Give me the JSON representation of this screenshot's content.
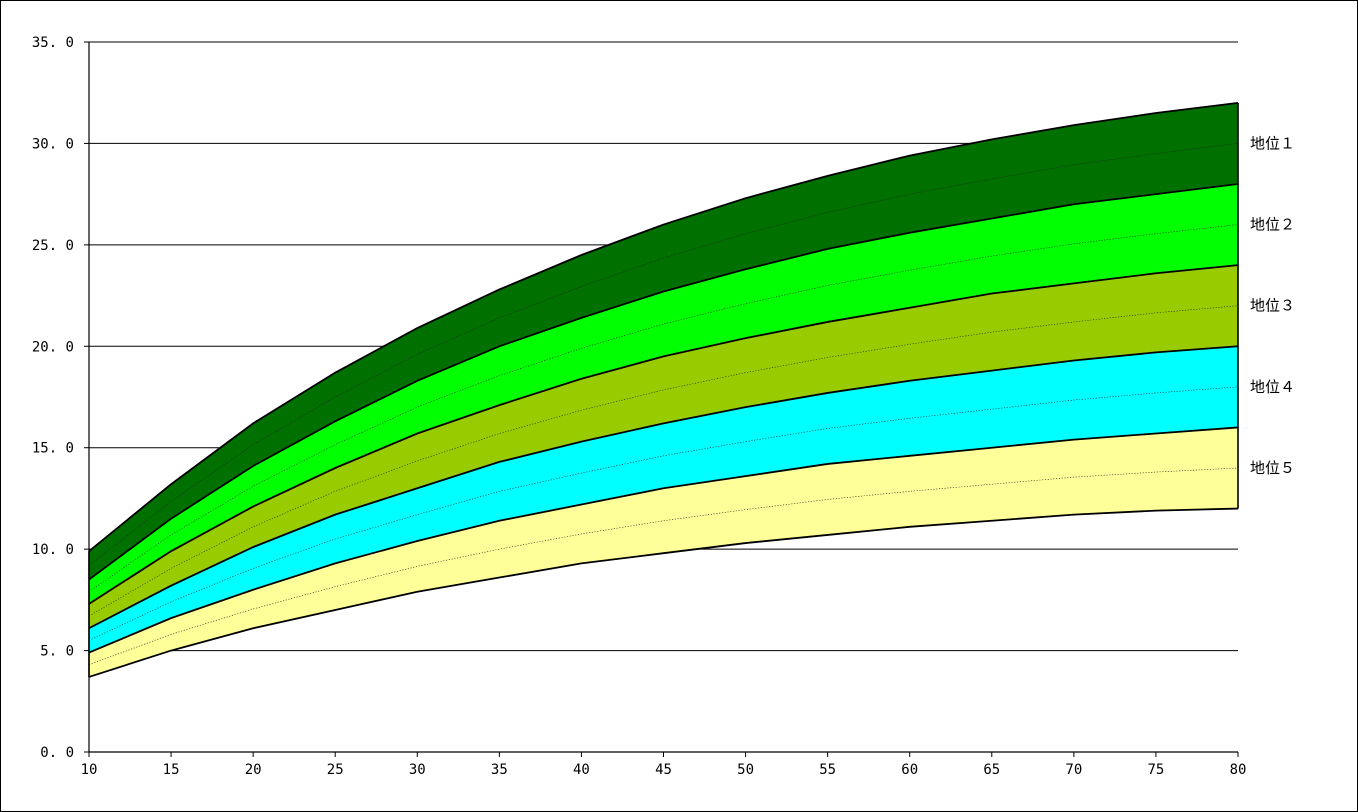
{
  "chart_data": {
    "type": "area",
    "title": "",
    "xlabel": "",
    "ylabel": "",
    "x": [
      10,
      15,
      20,
      25,
      30,
      35,
      40,
      45,
      50,
      55,
      60,
      65,
      70,
      75,
      80
    ],
    "xlim": [
      10,
      80
    ],
    "ylim": [
      0,
      35
    ],
    "x_ticks": [
      "10",
      "15",
      "20",
      "25",
      "30",
      "35",
      "40",
      "45",
      "50",
      "55",
      "60",
      "65",
      "70",
      "75",
      "80"
    ],
    "y_ticks": [
      "0. 0",
      "5. 0",
      "10. 0",
      "15. 0",
      "20. 0",
      "25. 0",
      "30. 0",
      "35. 0"
    ],
    "y_tick_values": [
      0,
      5,
      10,
      15,
      20,
      25,
      30,
      35
    ],
    "grid": true,
    "boundaries": [
      [
        9.9,
        13.2,
        16.2,
        18.7,
        20.9,
        22.8,
        24.5,
        26.0,
        27.3,
        28.4,
        29.4,
        30.2,
        30.9,
        31.5,
        32.0
      ],
      [
        8.5,
        11.5,
        14.1,
        16.3,
        18.3,
        20.0,
        21.4,
        22.7,
        23.8,
        24.8,
        25.6,
        26.3,
        27.0,
        27.5,
        28.0
      ],
      [
        7.3,
        9.9,
        12.1,
        14.0,
        15.7,
        17.1,
        18.4,
        19.5,
        20.4,
        21.2,
        21.9,
        22.6,
        23.1,
        23.6,
        24.0
      ],
      [
        6.1,
        8.2,
        10.1,
        11.7,
        13.0,
        14.3,
        15.3,
        16.2,
        17.0,
        17.7,
        18.3,
        18.8,
        19.3,
        19.7,
        20.0
      ],
      [
        4.9,
        6.6,
        8.0,
        9.3,
        10.4,
        11.4,
        12.2,
        13.0,
        13.6,
        14.2,
        14.6,
        15.0,
        15.4,
        15.7,
        16.0
      ],
      [
        3.7,
        5.0,
        6.1,
        7.0,
        7.9,
        8.6,
        9.3,
        9.8,
        10.3,
        10.7,
        11.1,
        11.4,
        11.7,
        11.9,
        12.0
      ]
    ],
    "bands": [
      {
        "name": "地位１",
        "color": "#007000"
      },
      {
        "name": "地位２",
        "color": "#00ff00"
      },
      {
        "name": "地位３",
        "color": "#99cc00"
      },
      {
        "name": "地位４",
        "color": "#00ffff"
      },
      {
        "name": "地位５",
        "color": "#ffff99"
      }
    ],
    "outline_color": "#000000",
    "legend": "right"
  }
}
